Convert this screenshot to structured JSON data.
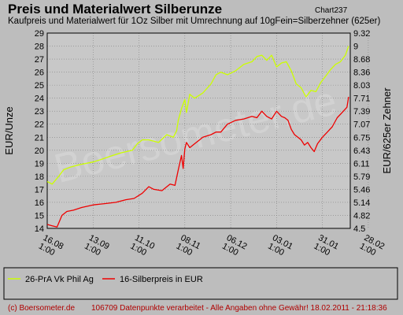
{
  "header": {
    "title": "Preis und Materialwert Silberunze",
    "chart_id": "Chart237",
    "subtitle": "Kaufpreis und Materialwert für 1Oz Silber mit Umrechnung auf 10gFein=Silberzehner (625er)"
  },
  "footer": {
    "source": "(c) Boersometer.de",
    "info": "106709 Datenpunkte verarbeitet - Alle Angaben ohne Gewähr! 18.02.2011 - 21:18:36"
  },
  "watermark": "Boersometer.de",
  "colors": {
    "background": "#bdbdbd",
    "plot_bg": "#c8c8c8",
    "grid": "#808080",
    "series1": "#ccff00",
    "series2": "#ee0000",
    "footer_text": "#b00000"
  },
  "chart_data": {
    "type": "line",
    "title": "Preis und Materialwert Silberunze",
    "subtitle": "Kaufpreis und Materialwert für 1Oz Silber mit Umrechnung auf 10gFein=Silberzehner (625er)",
    "ylabel": "EUR/Unze",
    "y2label": "EUR/625er Zehner",
    "ylim": [
      14,
      29
    ],
    "yticks": [
      "14",
      "15",
      "16",
      "17",
      "18",
      "19",
      "20",
      "21",
      "22",
      "23",
      "24",
      "25",
      "26",
      "27",
      "28",
      "29"
    ],
    "y2ticks": [
      "4.5",
      "4.82",
      "5.14",
      "5.46",
      "5.79",
      "6.11",
      "6.43",
      "6.75",
      "7.07",
      "7.39",
      "7.71",
      "8.03",
      "8.36",
      "8.68",
      "9",
      "9.32"
    ],
    "xlim": [
      0,
      185
    ],
    "xticks": [
      {
        "label": [
          "16.08",
          "1:00"
        ],
        "day": 0
      },
      {
        "label": [
          "13.09",
          "1:00"
        ],
        "day": 28
      },
      {
        "label": [
          "11.10",
          "1:00"
        ],
        "day": 56
      },
      {
        "label": [
          "08.11",
          "1:00"
        ],
        "day": 84
      },
      {
        "label": [
          "06.12",
          "1:00"
        ],
        "day": 112
      },
      {
        "label": [
          "03.01",
          "1:00"
        ],
        "day": 140
      },
      {
        "label": [
          "31.01",
          "1:00"
        ],
        "day": 168
      },
      {
        "label": [
          "28.02",
          "1:00"
        ],
        "day": 196
      }
    ],
    "grid": true,
    "legend_position": "bottom",
    "series": [
      {
        "name": "26-PrA Vk Phil Ag",
        "color": "#ccff00",
        "x": [
          0,
          3,
          7,
          10,
          14,
          20,
          28,
          33,
          40,
          45,
          52,
          55,
          58,
          62,
          68,
          73,
          77,
          79,
          80,
          82,
          84,
          85,
          87,
          90,
          95,
          100,
          103,
          106,
          110,
          115,
          120,
          125,
          128,
          131,
          134,
          137,
          140,
          143,
          146,
          149,
          152,
          155,
          158,
          161,
          164,
          167,
          170,
          173,
          176,
          179,
          182,
          184
        ],
        "y": [
          17.6,
          17.4,
          18.0,
          18.5,
          18.7,
          18.9,
          19.1,
          19.3,
          19.6,
          19.8,
          20.0,
          20.5,
          20.8,
          20.8,
          20.6,
          21.2,
          21.0,
          21.5,
          22.3,
          23.2,
          23.9,
          22.9,
          24.3,
          24.0,
          24.4,
          25.1,
          25.8,
          26.0,
          25.8,
          26.1,
          26.6,
          26.8,
          27.2,
          27.3,
          26.9,
          27.3,
          26.4,
          26.7,
          26.8,
          26.1,
          25.1,
          24.8,
          24.1,
          24.6,
          24.5,
          25.2,
          25.7,
          26.2,
          26.6,
          26.8,
          27.3,
          28.0
        ]
      },
      {
        "name": "16-Silberpreis in EUR",
        "color": "#ee0000",
        "x": [
          0,
          3,
          6,
          9,
          12,
          16,
          21,
          28,
          35,
          42,
          48,
          53,
          58,
          62,
          65,
          70,
          75,
          78,
          79,
          80,
          82,
          83,
          84,
          85,
          87,
          90,
          95,
          100,
          103,
          106,
          110,
          115,
          120,
          125,
          128,
          131,
          134,
          137,
          140,
          143,
          145,
          147,
          149,
          151,
          153,
          155,
          157,
          159,
          161,
          163,
          165,
          168,
          171,
          174,
          177,
          180,
          183,
          184
        ],
        "y": [
          14.3,
          14.2,
          14.1,
          15.0,
          15.3,
          15.4,
          15.6,
          15.8,
          15.9,
          16.0,
          16.2,
          16.3,
          16.7,
          17.2,
          17.0,
          16.9,
          17.4,
          17.3,
          17.9,
          18.5,
          19.6,
          18.6,
          20.1,
          20.6,
          20.2,
          20.5,
          21.0,
          21.2,
          21.4,
          21.4,
          22.0,
          22.3,
          22.4,
          22.6,
          22.5,
          23.0,
          22.6,
          22.4,
          23.0,
          22.6,
          22.5,
          22.3,
          21.6,
          21.2,
          21.0,
          20.8,
          20.4,
          20.6,
          20.2,
          19.9,
          20.5,
          21.0,
          21.4,
          21.8,
          22.5,
          22.9,
          23.3,
          24.1
        ]
      }
    ]
  }
}
